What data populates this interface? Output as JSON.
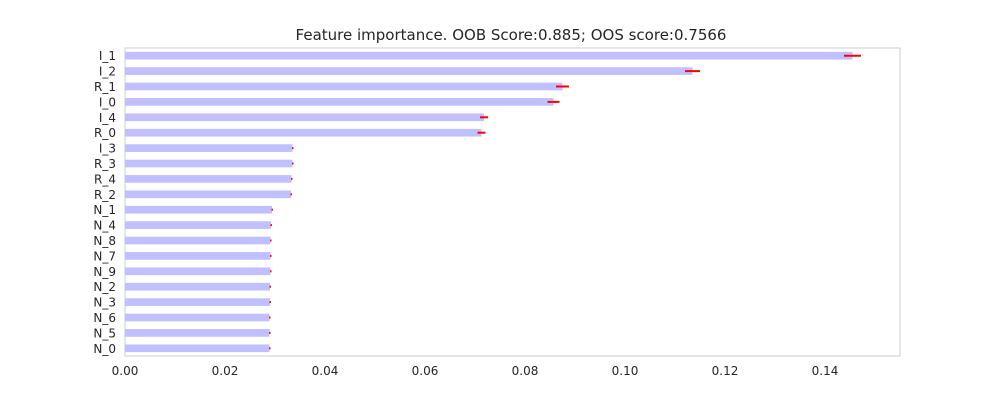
{
  "chart_data": {
    "type": "bar",
    "orientation": "horizontal",
    "title": "Feature importance. OOB Score:0.885; OOS score:0.7566",
    "xlabel": "",
    "ylabel": "",
    "xlim": [
      0.0,
      0.155
    ],
    "xticks": [
      0.0,
      0.02,
      0.04,
      0.06,
      0.08,
      0.1,
      0.12,
      0.14
    ],
    "xtick_labels": [
      "0.00",
      "0.02",
      "0.04",
      "0.06",
      "0.08",
      "0.10",
      "0.12",
      "0.14"
    ],
    "grid": false,
    "bar_color": "#c0c0ff",
    "error_color": "#ff0000",
    "categories": [
      "I_1",
      "I_2",
      "R_1",
      "I_0",
      "I_4",
      "R_0",
      "I_3",
      "R_3",
      "R_4",
      "R_2",
      "N_1",
      "N_4",
      "N_8",
      "N_7",
      "N_9",
      "N_2",
      "N_3",
      "N_6",
      "N_5",
      "N_0"
    ],
    "values": [
      0.1455,
      0.1135,
      0.0875,
      0.0857,
      0.0718,
      0.0713,
      0.0335,
      0.0335,
      0.0333,
      0.0332,
      0.0294,
      0.0292,
      0.0291,
      0.0291,
      0.0291,
      0.029,
      0.029,
      0.0289,
      0.0289,
      0.0289
    ],
    "errors": [
      0.0017,
      0.0015,
      0.0013,
      0.0012,
      0.0008,
      0.0008,
      0.0001,
      0.0001,
      0.0001,
      0.0001,
      0.0001,
      0.0001,
      0.0001,
      0.0001,
      0.0001,
      0.0001,
      0.0001,
      0.0001,
      0.0001,
      0.0001
    ]
  }
}
